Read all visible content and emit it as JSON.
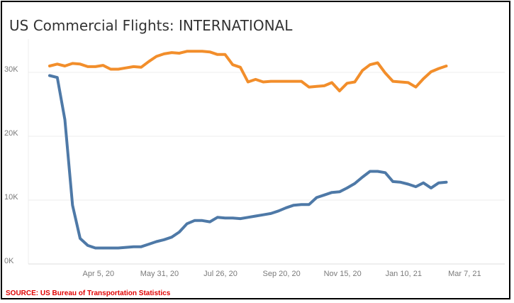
{
  "chart_data": {
    "type": "line",
    "title": "US Commercial Flights: INTERNATIONAL",
    "source": "SOURCE: US Bureau of Transportation Statistics",
    "ylim": [
      0,
      35000
    ],
    "y_ticks": [
      {
        "value": 0,
        "label": "0K"
      },
      {
        "value": 10000,
        "label": "10K"
      },
      {
        "value": 20000,
        "label": "20K"
      },
      {
        "value": 30000,
        "label": "30K"
      }
    ],
    "x_ticks": [
      {
        "value": 6.4,
        "label": "Apr 5, 20"
      },
      {
        "value": 14.4,
        "label": "May 31, 20"
      },
      {
        "value": 22.4,
        "label": "Jul 26, 20"
      },
      {
        "value": 30.4,
        "label": "Sep 20, 20"
      },
      {
        "value": 38.4,
        "label": "Nov 15, 20"
      },
      {
        "value": 46.4,
        "label": "Jan 10, 21"
      },
      {
        "value": 54.4,
        "label": "Mar 7, 21"
      }
    ],
    "grid": true,
    "legend": "none",
    "series": [
      {
        "color": "#f28e2b",
        "values": [
          31000,
          31300,
          31000,
          31400,
          31300,
          30900,
          30900,
          31100,
          30500,
          30500,
          30700,
          30900,
          30800,
          31700,
          32500,
          32900,
          33100,
          33000,
          33300,
          33300,
          33300,
          33200,
          32800,
          32800,
          31200,
          30800,
          28500,
          28900,
          28500,
          28600,
          28600,
          28600,
          28600,
          28600,
          27700,
          27800,
          27900,
          28400,
          27100,
          28300,
          28500,
          30300,
          31200,
          31500,
          29900,
          28600,
          28500,
          28400,
          27700,
          29000,
          30100,
          30600,
          31000
        ]
      },
      {
        "color": "#4e79a7",
        "values": [
          29500,
          29200,
          22600,
          9200,
          4000,
          2900,
          2500,
          2500,
          2500,
          2500,
          2600,
          2700,
          2700,
          3100,
          3500,
          3800,
          4200,
          5000,
          6300,
          6800,
          6800,
          6600,
          7300,
          7200,
          7200,
          7100,
          7300,
          7500,
          7700,
          7900,
          8300,
          8800,
          9200,
          9300,
          9300,
          10400,
          10800,
          11200,
          11300,
          11900,
          12600,
          13600,
          14500,
          14500,
          14300,
          12900,
          12800,
          12500,
          12100,
          12700,
          11900,
          12700,
          12800
        ]
      }
    ]
  }
}
